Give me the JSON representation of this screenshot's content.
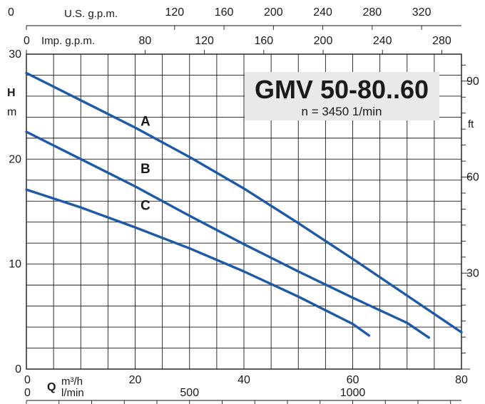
{
  "chart_data": {
    "type": "line",
    "title": "GMV 50-80..60",
    "subtitle": "n = 3450 1/min",
    "x_axis": {
      "label_symbol": "Q",
      "unit_primary": "m³/h",
      "unit_secondary": "l/min",
      "range": [
        0,
        80
      ],
      "ticks": [
        "0",
        "20",
        "40",
        "60",
        "80"
      ],
      "lmin_ticks": [
        "0",
        "500",
        "1000"
      ]
    },
    "y_axis": {
      "label": "H",
      "unit": "m",
      "range": [
        0,
        30
      ],
      "ticks": [
        "0",
        "10",
        "20",
        "30"
      ]
    },
    "y_axis_right": {
      "unit": "ft",
      "ticks": [
        "30",
        "60",
        "90"
      ]
    },
    "top_axis_us": {
      "label": "U.S. g.p.m.",
      "ticks": [
        "0",
        "120",
        "160",
        "200",
        "240",
        "280",
        "320"
      ]
    },
    "top_axis_imp": {
      "label": "Imp. g.p.m.",
      "ticks": [
        "0",
        "80",
        "120",
        "160",
        "200",
        "240",
        "280"
      ]
    },
    "grid": true,
    "series": [
      {
        "name": "A",
        "points": [
          [
            0,
            28.2
          ],
          [
            10,
            25.6
          ],
          [
            20,
            23.0
          ],
          [
            30,
            20.2
          ],
          [
            40,
            17.2
          ],
          [
            50,
            13.9
          ],
          [
            60,
            10.5
          ],
          [
            70,
            7.0
          ],
          [
            80,
            3.5
          ]
        ]
      },
      {
        "name": "B",
        "points": [
          [
            0,
            22.6
          ],
          [
            10,
            20.0
          ],
          [
            20,
            17.4
          ],
          [
            30,
            14.6
          ],
          [
            40,
            11.9
          ],
          [
            50,
            9.3
          ],
          [
            60,
            6.8
          ],
          [
            70,
            4.4
          ],
          [
            74,
            3.0
          ]
        ]
      },
      {
        "name": "C",
        "points": [
          [
            0,
            17.1
          ],
          [
            10,
            15.4
          ],
          [
            20,
            13.5
          ],
          [
            30,
            11.5
          ],
          [
            40,
            9.3
          ],
          [
            50,
            6.9
          ],
          [
            60,
            4.3
          ],
          [
            63,
            3.2
          ]
        ]
      }
    ]
  }
}
